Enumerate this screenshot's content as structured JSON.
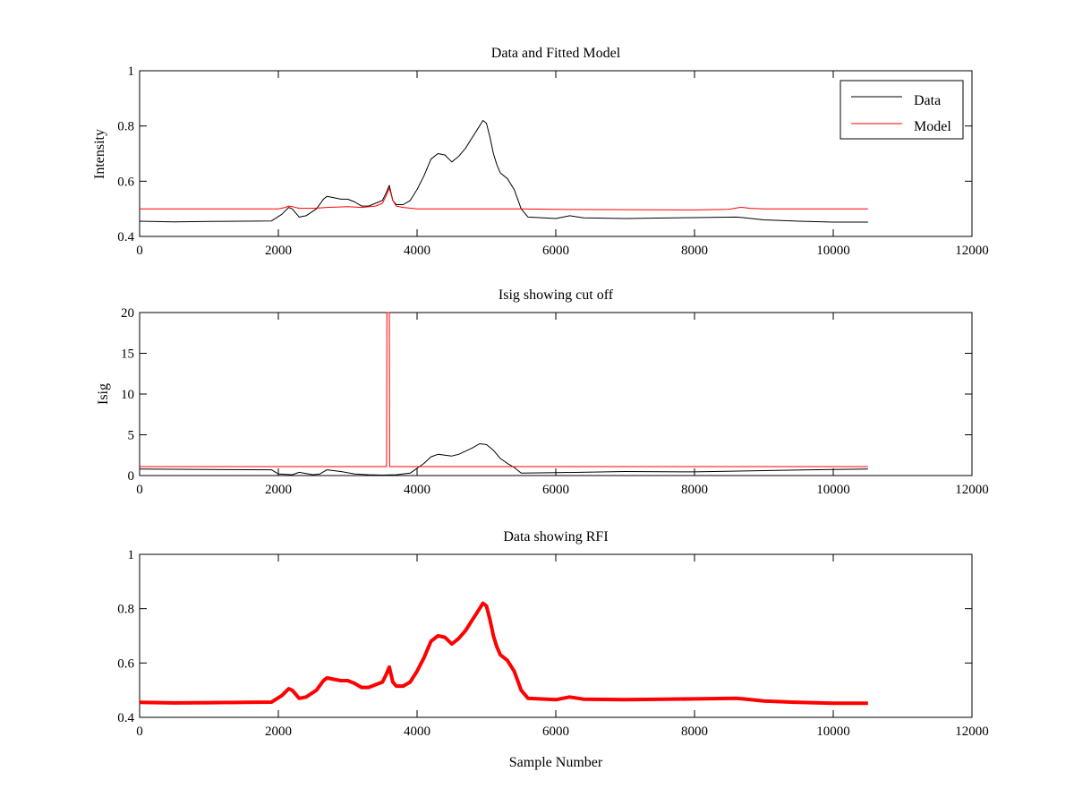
{
  "chart_data": [
    {
      "type": "line",
      "title": "Data and Fitted Model",
      "xlabel": "",
      "ylabel": "Intensity",
      "xlim": [
        0,
        12000
      ],
      "ylim": [
        0.4,
        1
      ],
      "xticks": [
        0,
        2000,
        4000,
        6000,
        8000,
        10000,
        12000
      ],
      "yticks": [
        0.4,
        0.6,
        0.8,
        1
      ],
      "ytick_labels": [
        "0.4",
        "0.6",
        "0.8",
        "1"
      ],
      "grid": false,
      "legend": {
        "placement": "top-right",
        "entries": [
          "Data",
          "Model"
        ]
      },
      "series": [
        {
          "name": "Data",
          "color": "#000000",
          "x": [
            0,
            500,
            1000,
            1500,
            1900,
            2050,
            2150,
            2200,
            2300,
            2400,
            2550,
            2650,
            2700,
            2800,
            2900,
            3000,
            3100,
            3200,
            3300,
            3400,
            3500,
            3550,
            3600,
            3650,
            3700,
            3800,
            3900,
            4000,
            4100,
            4200,
            4300,
            4400,
            4500,
            4600,
            4700,
            4800,
            4900,
            4950,
            5000,
            5050,
            5100,
            5150,
            5200,
            5300,
            5400,
            5500,
            5600,
            6000,
            6200,
            6400,
            7000,
            8000,
            8600,
            8700,
            9000,
            9500,
            10000,
            10500
          ],
          "y": [
            0.455,
            0.453,
            0.454,
            0.455,
            0.456,
            0.48,
            0.505,
            0.5,
            0.47,
            0.475,
            0.5,
            0.535,
            0.545,
            0.54,
            0.535,
            0.535,
            0.525,
            0.51,
            0.51,
            0.52,
            0.53,
            0.555,
            0.585,
            0.53,
            0.515,
            0.515,
            0.53,
            0.57,
            0.62,
            0.68,
            0.7,
            0.695,
            0.67,
            0.69,
            0.72,
            0.76,
            0.8,
            0.82,
            0.81,
            0.76,
            0.7,
            0.66,
            0.63,
            0.61,
            0.57,
            0.5,
            0.47,
            0.465,
            0.475,
            0.467,
            0.465,
            0.468,
            0.47,
            0.468,
            0.46,
            0.455,
            0.452,
            0.452
          ]
        },
        {
          "name": "Model",
          "color": "#ff0000",
          "x": [
            0,
            1000,
            2000,
            2100,
            2150,
            2200,
            2300,
            2500,
            2700,
            3000,
            3200,
            3400,
            3500,
            3550,
            3600,
            3650,
            3700,
            3800,
            4000,
            4500,
            5000,
            5500,
            6000,
            7000,
            8000,
            8500,
            8650,
            8700,
            8800,
            9000,
            10000,
            10500
          ],
          "y": [
            0.5,
            0.5,
            0.5,
            0.505,
            0.51,
            0.508,
            0.502,
            0.502,
            0.505,
            0.508,
            0.505,
            0.51,
            0.52,
            0.545,
            0.575,
            0.53,
            0.51,
            0.505,
            0.5,
            0.5,
            0.5,
            0.5,
            0.498,
            0.497,
            0.496,
            0.498,
            0.505,
            0.505,
            0.502,
            0.5,
            0.5,
            0.5
          ]
        }
      ]
    },
    {
      "type": "line",
      "title": "Isig showing cut off",
      "xlabel": "",
      "ylabel": "Isig",
      "xlim": [
        0,
        12000
      ],
      "ylim": [
        0,
        20
      ],
      "xticks": [
        0,
        2000,
        4000,
        6000,
        8000,
        10000,
        12000
      ],
      "yticks": [
        0,
        5,
        10,
        15,
        20
      ],
      "ytick_labels": [
        "0",
        "5",
        "10",
        "15",
        "20"
      ],
      "grid": false,
      "series": [
        {
          "color": "#000000",
          "x": [
            0,
            1000,
            1900,
            2000,
            2200,
            2300,
            2500,
            2600,
            2700,
            2900,
            3100,
            3300,
            3500,
            3700,
            3900,
            4100,
            4200,
            4300,
            4400,
            4500,
            4600,
            4700,
            4800,
            4900,
            5000,
            5100,
            5200,
            5300,
            5400,
            5500,
            6000,
            7000,
            8000,
            9000,
            10000,
            10500
          ],
          "y": [
            0.8,
            0.75,
            0.7,
            0.2,
            0.1,
            0.4,
            0.1,
            0.2,
            0.7,
            0.5,
            0.2,
            0.1,
            0.05,
            0.1,
            0.3,
            1.5,
            2.3,
            2.6,
            2.5,
            2.4,
            2.6,
            3.0,
            3.4,
            3.9,
            3.8,
            3.1,
            2.1,
            1.5,
            1.0,
            0.3,
            0.35,
            0.5,
            0.45,
            0.6,
            0.75,
            0.8
          ]
        },
        {
          "color": "#ff0000",
          "x": [
            0,
            3560,
            3565,
            3600,
            3605,
            4000,
            10500
          ],
          "y": [
            1.1,
            1.1,
            20,
            20,
            1.1,
            1.1,
            1.1
          ]
        }
      ]
    },
    {
      "type": "line",
      "title": "Data showing RFI",
      "xlabel": "Sample Number",
      "ylabel": "",
      "xlim": [
        0,
        12000
      ],
      "ylim": [
        0.4,
        1
      ],
      "xticks": [
        0,
        2000,
        4000,
        6000,
        8000,
        10000,
        12000
      ],
      "yticks": [
        0.4,
        0.6,
        0.8,
        1
      ],
      "ytick_labels": [
        "0.4",
        "0.6",
        "0.8",
        "1"
      ],
      "grid": false,
      "series": [
        {
          "color": "#ff0000",
          "x": [
            0,
            500,
            1000,
            1500,
            1900,
            2050,
            2150,
            2200,
            2300,
            2400,
            2550,
            2650,
            2700,
            2800,
            2900,
            3000,
            3100,
            3200,
            3300,
            3400,
            3500,
            3550,
            3600,
            3650,
            3700,
            3800,
            3900,
            4000,
            4100,
            4200,
            4300,
            4400,
            4500,
            4600,
            4700,
            4800,
            4900,
            4950,
            5000,
            5050,
            5100,
            5150,
            5200,
            5300,
            5400,
            5500,
            5600,
            6000,
            6200,
            6400,
            7000,
            8000,
            8600,
            8700,
            9000,
            9500,
            10000,
            10500
          ],
          "y": [
            0.455,
            0.453,
            0.454,
            0.455,
            0.456,
            0.48,
            0.505,
            0.5,
            0.47,
            0.475,
            0.5,
            0.535,
            0.545,
            0.54,
            0.535,
            0.535,
            0.525,
            0.51,
            0.51,
            0.52,
            0.53,
            0.555,
            0.585,
            0.53,
            0.515,
            0.515,
            0.53,
            0.57,
            0.62,
            0.68,
            0.7,
            0.695,
            0.67,
            0.69,
            0.72,
            0.76,
            0.8,
            0.82,
            0.81,
            0.76,
            0.7,
            0.66,
            0.63,
            0.61,
            0.57,
            0.5,
            0.47,
            0.465,
            0.475,
            0.467,
            0.465,
            0.468,
            0.47,
            0.468,
            0.46,
            0.455,
            0.452,
            0.452
          ]
        }
      ]
    }
  ]
}
